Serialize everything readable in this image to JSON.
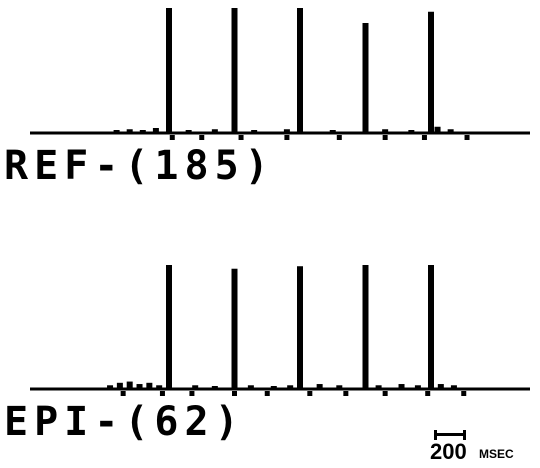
{
  "chart_data": [
    {
      "type": "bar",
      "label": "REF-(185)",
      "peaks": [
        {
          "x": 0,
          "y": 1.0
        },
        {
          "x": 1,
          "y": 1.0
        },
        {
          "x": 2,
          "y": 1.0
        },
        {
          "x": 3,
          "y": 0.88
        },
        {
          "x": 4,
          "y": 0.97
        }
      ],
      "noise": [
        {
          "x": -0.8,
          "y": 0.02
        },
        {
          "x": -0.6,
          "y": 0.03
        },
        {
          "x": -0.4,
          "y": 0.02
        },
        {
          "x": -0.2,
          "y": 0.04
        },
        {
          "x": 0.3,
          "y": 0.02
        },
        {
          "x": 0.7,
          "y": 0.03
        },
        {
          "x": 1.3,
          "y": 0.02
        },
        {
          "x": 1.8,
          "y": 0.03
        },
        {
          "x": 2.5,
          "y": 0.02
        },
        {
          "x": 3.3,
          "y": 0.03
        },
        {
          "x": 3.7,
          "y": 0.02
        },
        {
          "x": 4.1,
          "y": 0.05
        },
        {
          "x": 4.3,
          "y": 0.03
        }
      ],
      "below": [
        0.05,
        0.5,
        1.1,
        1.8,
        2.6,
        3.3,
        3.9,
        4.55
      ]
    },
    {
      "type": "bar",
      "label": "EPI-(62)",
      "peaks": [
        {
          "x": 0,
          "y": 1.0
        },
        {
          "x": 1,
          "y": 0.97
        },
        {
          "x": 2,
          "y": 0.99
        },
        {
          "x": 3,
          "y": 1.0
        },
        {
          "x": 4,
          "y": 1.0
        }
      ],
      "noise": [
        {
          "x": -0.9,
          "y": 0.03
        },
        {
          "x": -0.75,
          "y": 0.05
        },
        {
          "x": -0.6,
          "y": 0.06
        },
        {
          "x": -0.45,
          "y": 0.04
        },
        {
          "x": -0.3,
          "y": 0.05
        },
        {
          "x": -0.15,
          "y": 0.03
        },
        {
          "x": 0.4,
          "y": 0.03
        },
        {
          "x": 0.7,
          "y": 0.02
        },
        {
          "x": 1.25,
          "y": 0.03
        },
        {
          "x": 1.6,
          "y": 0.02
        },
        {
          "x": 1.85,
          "y": 0.03
        },
        {
          "x": 2.3,
          "y": 0.04
        },
        {
          "x": 2.6,
          "y": 0.03
        },
        {
          "x": 3.2,
          "y": 0.03
        },
        {
          "x": 3.55,
          "y": 0.04
        },
        {
          "x": 3.8,
          "y": 0.03
        },
        {
          "x": 4.15,
          "y": 0.04
        },
        {
          "x": 4.35,
          "y": 0.03
        }
      ],
      "below": [
        -0.7,
        -0.1,
        0.35,
        1.0,
        1.5,
        2.15,
        2.7,
        3.3,
        3.95,
        4.5
      ]
    }
  ],
  "scale": {
    "value": "200",
    "unit": "MSEC"
  }
}
